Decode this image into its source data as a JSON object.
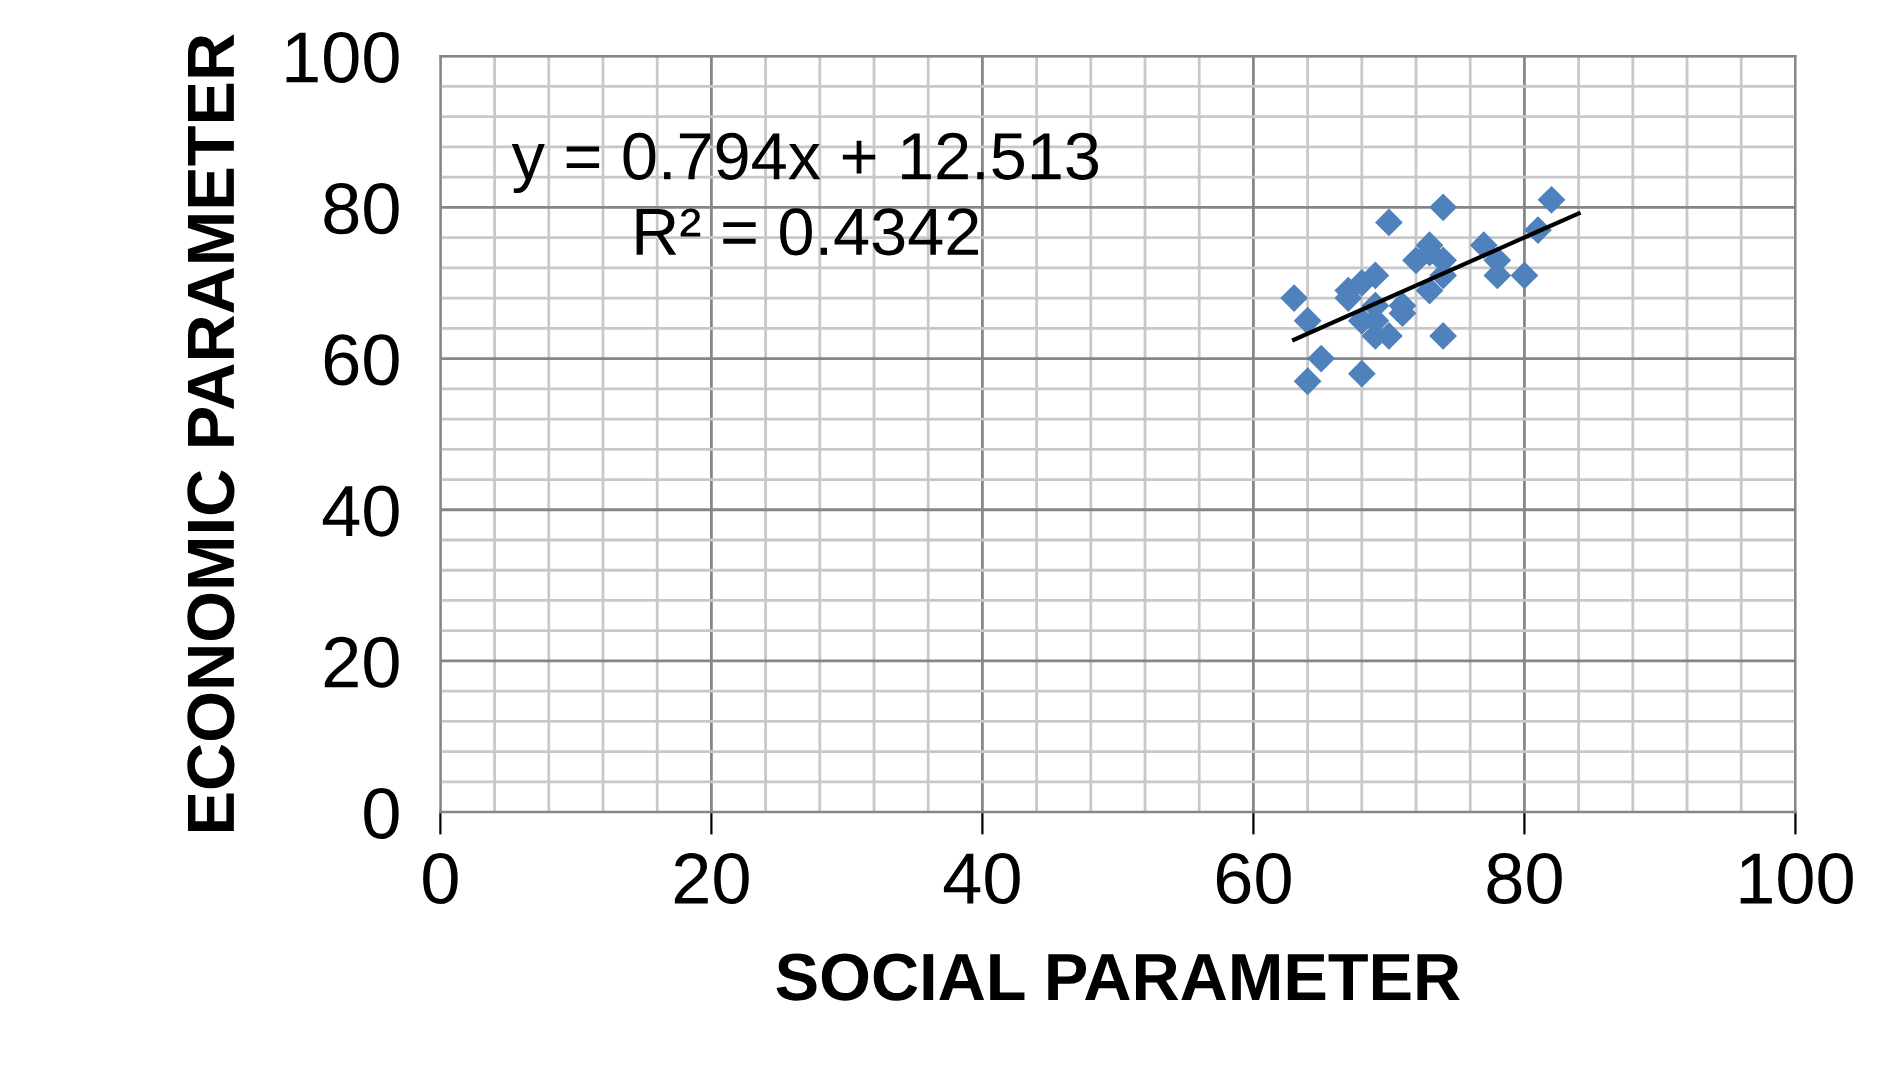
{
  "chart_data": {
    "type": "scatter",
    "xlabel": "SOCIAL PARAMETER",
    "ylabel": "ECONOMIC PARAMETER",
    "annotations": [
      "y = 0.794x + 12.513",
      "R² = 0.4342"
    ],
    "xlim": [
      0,
      100
    ],
    "ylim": [
      0,
      100
    ],
    "xticks": [
      0,
      {
        "value": 4,
        "label": null
      },
      {
        "value": 8,
        "label": null
      },
      {
        "value": 12,
        "label": null
      },
      {
        "value": 16,
        "label": null
      },
      20,
      {
        "value": 24,
        "label": null
      },
      {
        "value": 28,
        "label": null
      },
      {
        "value": 32,
        "label": null
      },
      {
        "value": 36,
        "label": null
      },
      40,
      {
        "value": 44,
        "label": null
      },
      {
        "value": 48,
        "label": null
      },
      {
        "value": 52,
        "label": null
      },
      {
        "value": 56,
        "label": null
      },
      60,
      {
        "value": 64,
        "label": null
      },
      {
        "value": 68,
        "label": null
      },
      {
        "value": 72,
        "label": null
      },
      {
        "value": 76,
        "label": null
      },
      80,
      {
        "value": 84,
        "label": null
      },
      {
        "value": 88,
        "label": null
      },
      {
        "value": 92,
        "label": null
      },
      {
        "value": 96,
        "label": null
      },
      100
    ],
    "yticks": [
      0,
      {
        "value": 4,
        "label": null
      },
      {
        "value": 8,
        "label": null
      },
      {
        "value": 12,
        "label": null
      },
      {
        "value": 16,
        "label": null
      },
      20,
      {
        "value": 24,
        "label": null
      },
      {
        "value": 28,
        "label": null
      },
      {
        "value": 32,
        "label": null
      },
      {
        "value": 36,
        "label": null
      },
      40,
      {
        "value": 44,
        "label": null
      },
      {
        "value": 48,
        "label": null
      },
      {
        "value": 52,
        "label": null
      },
      {
        "value": 56,
        "label": null
      },
      60,
      {
        "value": 64,
        "label": null
      },
      {
        "value": 68,
        "label": null
      },
      {
        "value": 72,
        "label": null
      },
      {
        "value": 76,
        "label": null
      },
      80,
      {
        "value": 84,
        "label": null
      },
      {
        "value": 88,
        "label": null
      },
      {
        "value": 92,
        "label": null
      },
      {
        "value": 96,
        "label": null
      },
      100
    ],
    "grid": true,
    "legend": false,
    "series": [
      {
        "color": "#4f81bd",
        "marker": "diamond",
        "x": [
          63,
          64,
          64,
          65,
          67,
          68,
          70,
          74,
          74,
          82,
          81,
          80,
          77,
          78,
          78,
          69,
          68,
          67,
          68,
          69,
          70,
          71,
          71,
          72,
          73,
          73,
          74,
          74,
          73,
          69,
          69
        ],
        "values": [
          68,
          65,
          57,
          60,
          69,
          58,
          78,
          80,
          63,
          81,
          77,
          71,
          75,
          71,
          73,
          71,
          70,
          68,
          65,
          63,
          63,
          66,
          67,
          73,
          75,
          69,
          73,
          71,
          74,
          67,
          65
        ]
      },
      {
        "type": "line",
        "color": "#000000",
        "marker": "none",
        "line_style": "solid",
        "x": [
          63,
          84
        ],
        "values": [
          62.5,
          79.2
        ]
      }
    ]
  }
}
